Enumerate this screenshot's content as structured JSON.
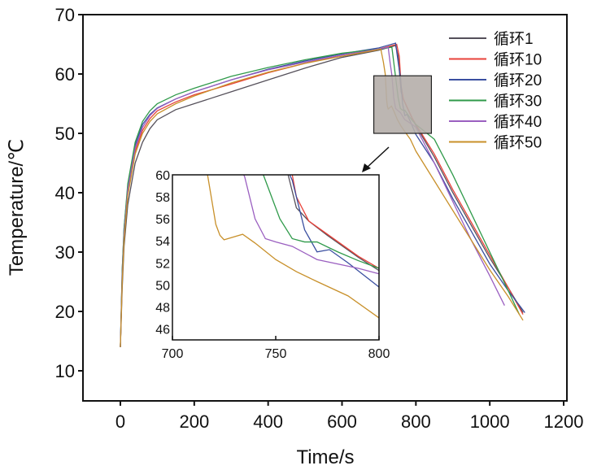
{
  "chart_data": {
    "type": "line",
    "xlabel": "Time/s",
    "ylabel": "Temperature/℃",
    "xlim": [
      -100,
      1210
    ],
    "ylim": [
      5,
      70
    ],
    "xticks": [
      0,
      200,
      400,
      600,
      800,
      1000,
      1200
    ],
    "yticks": [
      10,
      20,
      30,
      40,
      50,
      60,
      70
    ],
    "legend_position": "top-right",
    "series": [
      {
        "name": "循环1",
        "color": "#55505a",
        "points": [
          [
            0,
            14
          ],
          [
            5,
            24
          ],
          [
            10,
            31
          ],
          [
            20,
            38
          ],
          [
            40,
            45
          ],
          [
            60,
            48.5
          ],
          [
            80,
            50.8
          ],
          [
            100,
            52.3
          ],
          [
            150,
            54
          ],
          [
            200,
            55
          ],
          [
            300,
            57
          ],
          [
            400,
            59
          ],
          [
            500,
            61
          ],
          [
            600,
            62.8
          ],
          [
            700,
            64
          ],
          [
            745,
            64.8
          ],
          [
            752,
            63
          ],
          [
            760,
            57
          ],
          [
            766,
            55.8
          ],
          [
            775,
            54.5
          ],
          [
            790,
            52.5
          ],
          [
            800,
            51.3
          ],
          [
            850,
            46
          ],
          [
            900,
            40
          ],
          [
            950,
            34.5
          ],
          [
            1000,
            29
          ],
          [
            1050,
            24
          ],
          [
            1090,
            19.8
          ]
        ]
      },
      {
        "name": "循环10",
        "color": "#e8423a",
        "points": [
          [
            0,
            14
          ],
          [
            5,
            26
          ],
          [
            10,
            33
          ],
          [
            20,
            40
          ],
          [
            40,
            47
          ],
          [
            60,
            50.5
          ],
          [
            80,
            52.5
          ],
          [
            100,
            53.8
          ],
          [
            150,
            55.3
          ],
          [
            200,
            56.5
          ],
          [
            300,
            58.3
          ],
          [
            400,
            60.2
          ],
          [
            500,
            61.8
          ],
          [
            600,
            63.2
          ],
          [
            700,
            64.2
          ],
          [
            748,
            65
          ],
          [
            755,
            63
          ],
          [
            760,
            58
          ],
          [
            766,
            55.8
          ],
          [
            775,
            54.6
          ],
          [
            790,
            52.6
          ],
          [
            800,
            51.5
          ],
          [
            850,
            46.5
          ],
          [
            900,
            40.5
          ],
          [
            950,
            35
          ],
          [
            1000,
            29.5
          ],
          [
            1050,
            24
          ],
          [
            1090,
            19.5
          ]
        ]
      },
      {
        "name": "循环20",
        "color": "#3a4fa0",
        "points": [
          [
            0,
            14
          ],
          [
            5,
            27
          ],
          [
            10,
            34
          ],
          [
            20,
            41
          ],
          [
            40,
            48
          ],
          [
            60,
            51.5
          ],
          [
            80,
            53.2
          ],
          [
            100,
            54.3
          ],
          [
            150,
            55.8
          ],
          [
            200,
            57
          ],
          [
            300,
            59
          ],
          [
            400,
            60.8
          ],
          [
            500,
            62.2
          ],
          [
            600,
            63.4
          ],
          [
            700,
            64.4
          ],
          [
            745,
            65.2
          ],
          [
            752,
            62
          ],
          [
            758,
            59.5
          ],
          [
            764,
            55
          ],
          [
            770,
            53
          ],
          [
            776,
            53.2
          ],
          [
            785,
            52
          ],
          [
            800,
            49.8
          ],
          [
            850,
            45
          ],
          [
            900,
            39
          ],
          [
            950,
            33.5
          ],
          [
            1000,
            28
          ],
          [
            1050,
            23.5
          ],
          [
            1095,
            19.8
          ]
        ]
      },
      {
        "name": "循环30",
        "color": "#2f9a4a",
        "points": [
          [
            0,
            14
          ],
          [
            5,
            27
          ],
          [
            10,
            34
          ],
          [
            20,
            41.5
          ],
          [
            40,
            48.5
          ],
          [
            60,
            52
          ],
          [
            80,
            53.8
          ],
          [
            100,
            55
          ],
          [
            150,
            56.5
          ],
          [
            200,
            57.6
          ],
          [
            300,
            59.6
          ],
          [
            400,
            61.1
          ],
          [
            500,
            62.4
          ],
          [
            600,
            63.5
          ],
          [
            700,
            64.2
          ],
          [
            735,
            64.5
          ],
          [
            740,
            62
          ],
          [
            746,
            59
          ],
          [
            752,
            56
          ],
          [
            758,
            54.2
          ],
          [
            764,
            53.9
          ],
          [
            770,
            53.9
          ],
          [
            780,
            53
          ],
          [
            790,
            52.2
          ],
          [
            800,
            51.5
          ],
          [
            850,
            49
          ],
          [
            900,
            43
          ],
          [
            950,
            36.5
          ],
          [
            1000,
            30
          ],
          [
            1050,
            23.5
          ],
          [
            1080,
            19.5
          ]
        ]
      },
      {
        "name": "循环40",
        "color": "#9a5fc0",
        "points": [
          [
            0,
            14
          ],
          [
            5,
            26
          ],
          [
            10,
            33
          ],
          [
            20,
            40.5
          ],
          [
            40,
            47.5
          ],
          [
            60,
            51
          ],
          [
            80,
            53
          ],
          [
            100,
            54.2
          ],
          [
            150,
            55.8
          ],
          [
            200,
            57
          ],
          [
            300,
            59
          ],
          [
            400,
            60.7
          ],
          [
            500,
            62
          ],
          [
            600,
            63.2
          ],
          [
            700,
            64.2
          ],
          [
            725,
            64.5
          ],
          [
            730,
            62
          ],
          [
            735,
            59.8
          ],
          [
            740,
            56
          ],
          [
            745,
            54.2
          ],
          [
            750,
            53.9
          ],
          [
            758,
            53.5
          ],
          [
            770,
            52.3
          ],
          [
            790,
            51.5
          ],
          [
            800,
            51
          ],
          [
            850,
            45
          ],
          [
            900,
            38.5
          ],
          [
            950,
            32
          ],
          [
            1000,
            26
          ],
          [
            1040,
            21
          ]
        ]
      },
      {
        "name": "循环50",
        "color": "#c8902a",
        "points": [
          [
            0,
            14
          ],
          [
            5,
            25
          ],
          [
            10,
            32
          ],
          [
            20,
            39.5
          ],
          [
            40,
            46.5
          ],
          [
            60,
            50
          ],
          [
            80,
            52
          ],
          [
            100,
            53.3
          ],
          [
            150,
            55
          ],
          [
            200,
            56.3
          ],
          [
            300,
            58.5
          ],
          [
            400,
            60.3
          ],
          [
            500,
            61.8
          ],
          [
            600,
            63
          ],
          [
            690,
            64
          ],
          [
            705,
            64.2
          ],
          [
            712,
            62
          ],
          [
            717,
            60
          ],
          [
            721,
            55.5
          ],
          [
            723,
            54.5
          ],
          [
            725,
            54.1
          ],
          [
            734,
            54.6
          ],
          [
            740,
            53.8
          ],
          [
            750,
            52.3
          ],
          [
            760,
            51.2
          ],
          [
            770,
            50.3
          ],
          [
            785,
            49
          ],
          [
            800,
            47
          ],
          [
            850,
            42
          ],
          [
            900,
            37
          ],
          [
            950,
            32
          ],
          [
            1000,
            27
          ],
          [
            1050,
            22.5
          ],
          [
            1090,
            18.5
          ]
        ]
      }
    ],
    "inset": {
      "xlim": [
        700,
        800
      ],
      "ylim": [
        45,
        60
      ],
      "xticks": [
        700,
        750,
        800
      ],
      "yticks": [
        46,
        48,
        50,
        52,
        54,
        56,
        58,
        60
      ],
      "zoom_region": {
        "x": [
          686,
          842
        ],
        "y": [
          50,
          59.7
        ]
      }
    }
  }
}
